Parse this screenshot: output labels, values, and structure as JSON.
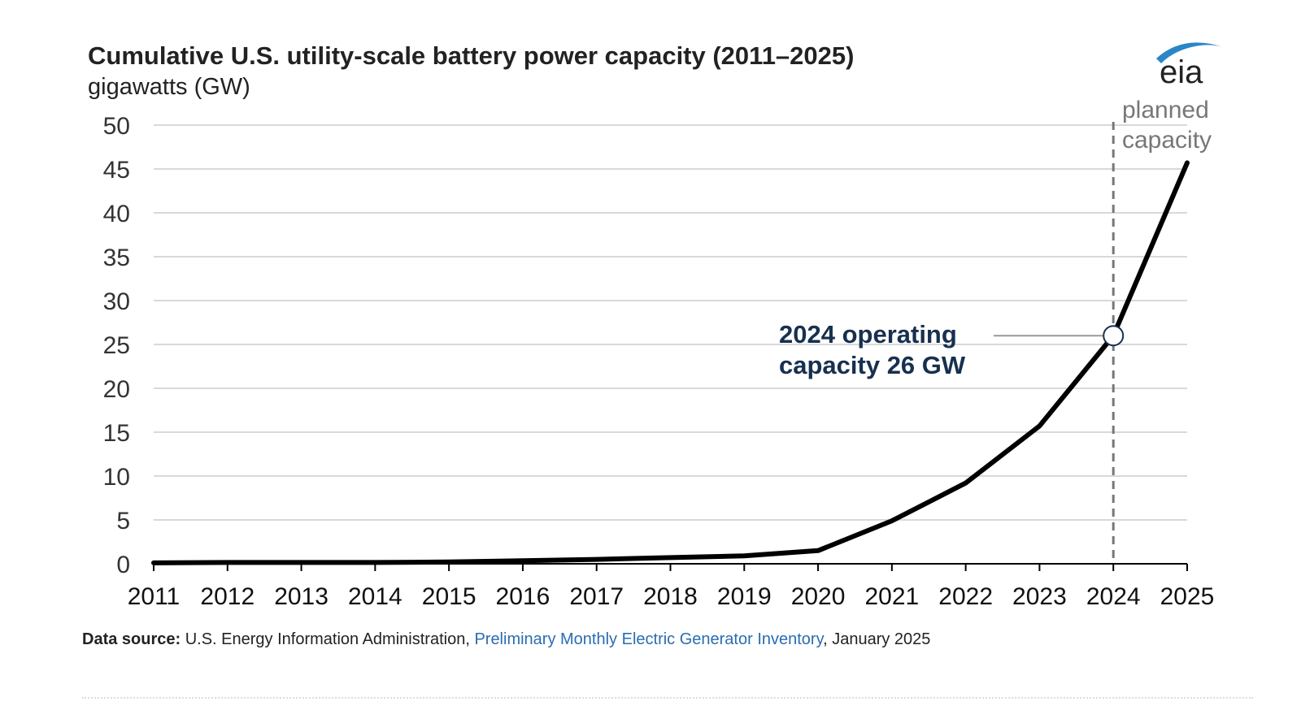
{
  "chart_data": {
    "type": "line",
    "title": "Cumulative U.S. utility-scale battery power capacity (2011–2025)",
    "subtitle": "gigawatts (GW)",
    "x": [
      "2011",
      "2012",
      "2013",
      "2014",
      "2015",
      "2016",
      "2017",
      "2018",
      "2019",
      "2020",
      "2021",
      "2022",
      "2023",
      "2024",
      "2025"
    ],
    "series": [
      {
        "name": "Cumulative battery power capacity",
        "values": [
          0.1,
          0.15,
          0.15,
          0.15,
          0.2,
          0.35,
          0.5,
          0.7,
          0.9,
          1.5,
          4.9,
          9.2,
          15.7,
          26,
          45.7
        ],
        "color": "#000000"
      }
    ],
    "ylim": [
      0,
      50
    ],
    "yticks": [
      0,
      5,
      10,
      15,
      20,
      25,
      30,
      35,
      40,
      45,
      50
    ],
    "ytick_labels": [
      "0",
      "5",
      "10",
      "15",
      "20",
      "25",
      "30",
      "35",
      "40",
      "45",
      "50"
    ],
    "grid": true,
    "planned_divider_x": "2024",
    "annotations": {
      "operating_line1": "2024 operating",
      "operating_line2": "capacity 26 GW",
      "operating_point": {
        "x": "2024",
        "y": 26
      },
      "planned_line1": "planned",
      "planned_line2": "capacity"
    }
  },
  "logo": {
    "text": "eia",
    "accent_color": "#2a86c8"
  },
  "source": {
    "label": "Data source:",
    "org": " U.S. Energy Information Administration, ",
    "link_text": "Preliminary Monthly Electric Generator Inventory",
    "suffix": ", January 2025"
  },
  "colors": {
    "grid": "#d9d9d9",
    "axis": "#000000",
    "annotation": "#17304f",
    "link": "#2a6db1"
  }
}
